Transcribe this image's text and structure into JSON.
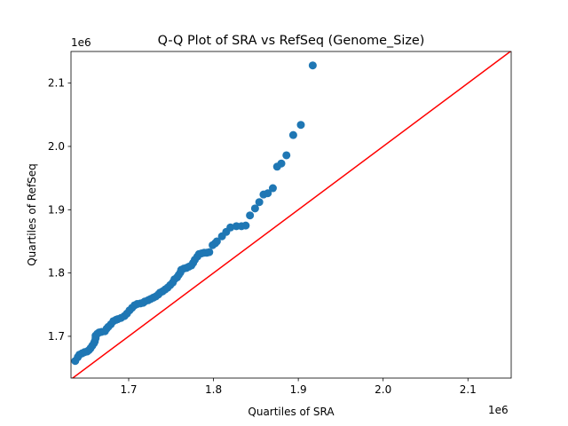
{
  "chart_data": {
    "type": "scatter",
    "title": "Q-Q Plot of SRA vs RefSeq (Genome_Size)",
    "xlabel": "Quartiles of SRA",
    "ylabel": "Quartiles of RefSeq",
    "x_offset_label": "1e6",
    "y_offset_label": "1e6",
    "xlim": [
      1.632,
      2.151
    ],
    "ylim": [
      1.634,
      2.15
    ],
    "xticks": [
      "1.7",
      "1.8",
      "1.9",
      "2.0",
      "2.1"
    ],
    "yticks": [
      "1.7",
      "1.8",
      "1.9",
      "2.0",
      "2.1"
    ],
    "grid": false,
    "marker_color": "#1f77b4",
    "reference_line": {
      "type": "y=x",
      "color": "#ff0000"
    },
    "points": [
      [
        1.637,
        1.661
      ],
      [
        1.64,
        1.667
      ],
      [
        1.642,
        1.671
      ],
      [
        1.645,
        1.673
      ],
      [
        1.648,
        1.675
      ],
      [
        1.651,
        1.676
      ],
      [
        1.653,
        1.678
      ],
      [
        1.655,
        1.681
      ],
      [
        1.657,
        1.685
      ],
      [
        1.659,
        1.689
      ],
      [
        1.66,
        1.692
      ],
      [
        1.661,
        1.697
      ],
      [
        1.661,
        1.701
      ],
      [
        1.663,
        1.704
      ],
      [
        1.665,
        1.706
      ],
      [
        1.668,
        1.707
      ],
      [
        1.672,
        1.708
      ],
      [
        1.674,
        1.712
      ],
      [
        1.676,
        1.715
      ],
      [
        1.679,
        1.719
      ],
      [
        1.682,
        1.724
      ],
      [
        1.685,
        1.726
      ],
      [
        1.687,
        1.727
      ],
      [
        1.691,
        1.729
      ],
      [
        1.695,
        1.732
      ],
      [
        1.698,
        1.736
      ],
      [
        1.701,
        1.741
      ],
      [
        1.704,
        1.745
      ],
      [
        1.707,
        1.749
      ],
      [
        1.71,
        1.751
      ],
      [
        1.714,
        1.752
      ],
      [
        1.717,
        1.753
      ],
      [
        1.719,
        1.755
      ],
      [
        1.723,
        1.757
      ],
      [
        1.726,
        1.759
      ],
      [
        1.729,
        1.761
      ],
      [
        1.732,
        1.763
      ],
      [
        1.735,
        1.766
      ],
      [
        1.737,
        1.769
      ],
      [
        1.74,
        1.771
      ],
      [
        1.743,
        1.774
      ],
      [
        1.746,
        1.777
      ],
      [
        1.749,
        1.781
      ],
      [
        1.752,
        1.785
      ],
      [
        1.754,
        1.79
      ],
      [
        1.757,
        1.793
      ],
      [
        1.759,
        1.797
      ],
      [
        1.761,
        1.801
      ],
      [
        1.762,
        1.805
      ],
      [
        1.765,
        1.807
      ],
      [
        1.768,
        1.808
      ],
      [
        1.771,
        1.81
      ],
      [
        1.774,
        1.812
      ],
      [
        1.776,
        1.816
      ],
      [
        1.778,
        1.821
      ],
      [
        1.781,
        1.826
      ],
      [
        1.783,
        1.83
      ],
      [
        1.786,
        1.831
      ],
      [
        1.789,
        1.832
      ],
      [
        1.792,
        1.832
      ],
      [
        1.795,
        1.833
      ],
      [
        1.799,
        1.844
      ],
      [
        1.802,
        1.847
      ],
      [
        1.804,
        1.85
      ],
      [
        1.81,
        1.858
      ],
      [
        1.815,
        1.865
      ],
      [
        1.82,
        1.872
      ],
      [
        1.827,
        1.874
      ],
      [
        1.833,
        1.874
      ],
      [
        1.838,
        1.875
      ],
      [
        1.843,
        1.891
      ],
      [
        1.849,
        1.902
      ],
      [
        1.854,
        1.912
      ],
      [
        1.859,
        1.924
      ],
      [
        1.864,
        1.926
      ],
      [
        1.87,
        1.934
      ],
      [
        1.875,
        1.968
      ],
      [
        1.88,
        1.973
      ],
      [
        1.886,
        1.986
      ],
      [
        1.894,
        2.018
      ],
      [
        1.903,
        2.034
      ],
      [
        1.917,
        2.128
      ]
    ]
  }
}
